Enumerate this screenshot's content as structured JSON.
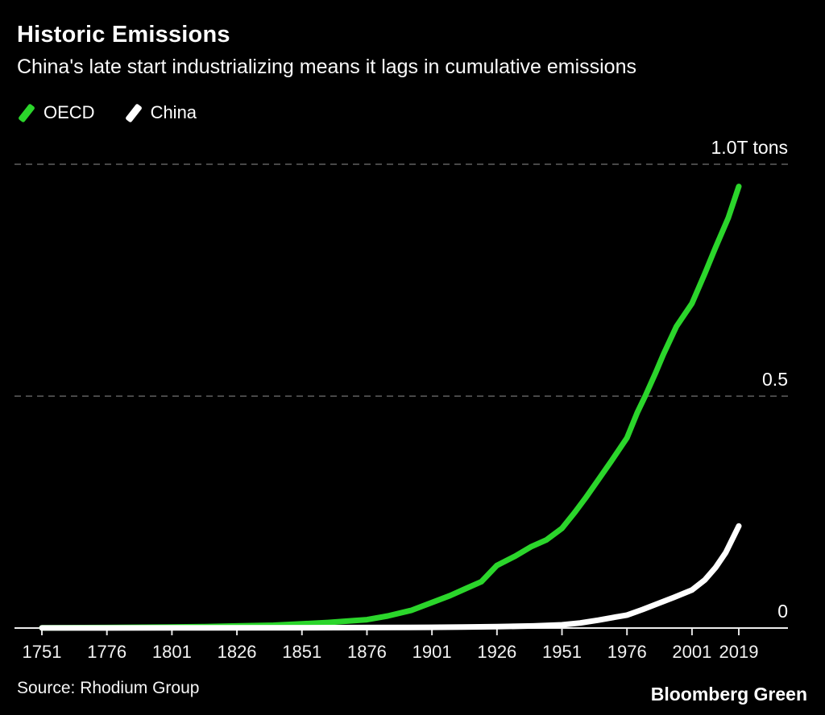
{
  "header": {
    "title": "Historic Emissions",
    "subtitle": "China's late start industrializing means it lags in cumulative emissions"
  },
  "legend": [
    {
      "label": "OECD",
      "color": "#2bd62b"
    },
    {
      "label": "China",
      "color": "#ffffff"
    }
  ],
  "footer": {
    "source": "Source: Rhodium Group",
    "brand": "Bloomberg Green"
  },
  "colors": {
    "background": "#000000",
    "gridline": "#606060",
    "axis": "#ececec",
    "oecd": "#2bd62b",
    "china": "#ffffff"
  },
  "chart_data": {
    "type": "line",
    "title": "Historic Emissions",
    "subtitle": "China's late start industrializing means it lags in cumulative emissions",
    "unit": "T tons",
    "xlim": [
      1751,
      2019
    ],
    "ylim": [
      0,
      1.05
    ],
    "x_ticks": [
      1751,
      1776,
      1801,
      1826,
      1851,
      1876,
      1901,
      1926,
      1951,
      1976,
      2001,
      2019
    ],
    "gridlines": [
      {
        "value": 1.0,
        "label": "1.0T tons"
      },
      {
        "value": 0.5,
        "label": "0.5"
      },
      {
        "value": 0,
        "label": "0"
      }
    ],
    "grid": "dashed-horizontal",
    "legend_position": "top-left",
    "series": [
      {
        "name": "OECD",
        "color": "#2bd62b",
        "points": [
          [
            1751,
            0.0005
          ],
          [
            1775,
            0.001
          ],
          [
            1800,
            0.002
          ],
          [
            1813,
            0.003
          ],
          [
            1826,
            0.0045
          ],
          [
            1840,
            0.006
          ],
          [
            1851,
            0.009
          ],
          [
            1861,
            0.012
          ],
          [
            1871,
            0.016
          ],
          [
            1876,
            0.018
          ],
          [
            1884,
            0.026
          ],
          [
            1893,
            0.038
          ],
          [
            1901,
            0.055
          ],
          [
            1908,
            0.07
          ],
          [
            1914,
            0.085
          ],
          [
            1920,
            0.1
          ],
          [
            1926,
            0.135
          ],
          [
            1933,
            0.155
          ],
          [
            1939,
            0.175
          ],
          [
            1945,
            0.19
          ],
          [
            1951,
            0.215
          ],
          [
            1956,
            0.25
          ],
          [
            1960,
            0.28
          ],
          [
            1965,
            0.32
          ],
          [
            1970,
            0.36
          ],
          [
            1976,
            0.41
          ],
          [
            1980,
            0.465
          ],
          [
            1983,
            0.5
          ],
          [
            1987,
            0.55
          ],
          [
            1990,
            0.59
          ],
          [
            1995,
            0.65
          ],
          [
            2001,
            0.7
          ],
          [
            2006,
            0.765
          ],
          [
            2010,
            0.82
          ],
          [
            2015,
            0.885
          ],
          [
            2019,
            0.952
          ]
        ]
      },
      {
        "name": "China",
        "color": "#ffffff",
        "points": [
          [
            1751,
            0.0002
          ],
          [
            1800,
            0.0004
          ],
          [
            1850,
            0.0007
          ],
          [
            1875,
            0.001
          ],
          [
            1900,
            0.0015
          ],
          [
            1913,
            0.002
          ],
          [
            1926,
            0.003
          ],
          [
            1940,
            0.0045
          ],
          [
            1951,
            0.007
          ],
          [
            1958,
            0.011
          ],
          [
            1965,
            0.017
          ],
          [
            1970,
            0.022
          ],
          [
            1976,
            0.028
          ],
          [
            1982,
            0.04
          ],
          [
            1988,
            0.053
          ],
          [
            1994,
            0.066
          ],
          [
            2001,
            0.082
          ],
          [
            2006,
            0.104
          ],
          [
            2010,
            0.13
          ],
          [
            2014,
            0.163
          ],
          [
            2019,
            0.22
          ]
        ]
      }
    ]
  }
}
